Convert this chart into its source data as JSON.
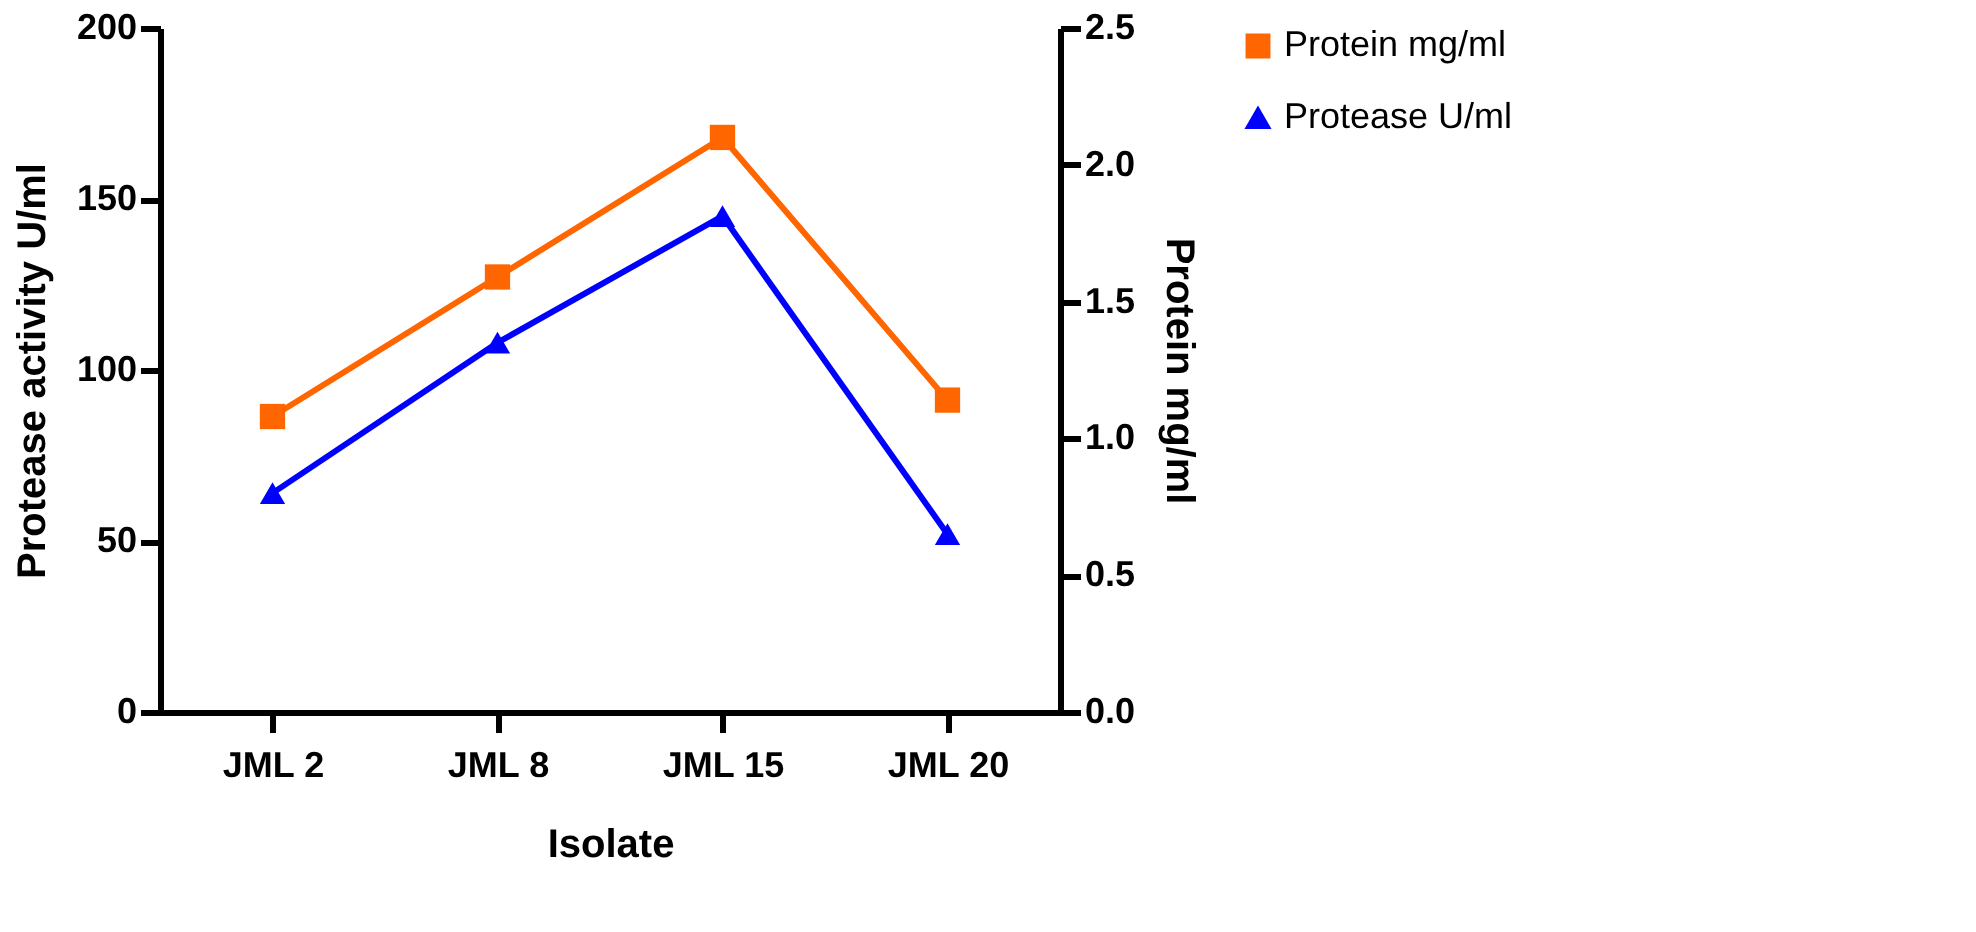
{
  "chart_data": {
    "type": "line",
    "xlabel": "Isolate",
    "ylabel": "Protease activity U/ml",
    "y2label": "Protein mg/ml",
    "categories": [
      "JML 2",
      "JML 8",
      "JML 15",
      "JML 20"
    ],
    "series": [
      {
        "name": "Protein mg/ml",
        "color": "#ff6600",
        "marker": "square",
        "axis": "y2",
        "values": [
          1.08,
          1.59,
          2.1,
          1.14
        ]
      },
      {
        "name": "Protease U/ml",
        "color": "#0000ff",
        "marker": "triangle",
        "values": [
          64,
          108,
          145,
          52
        ]
      }
    ],
    "ylim": [
      0,
      200
    ],
    "yticks": [
      0,
      50,
      100,
      150,
      200
    ],
    "y2lim": [
      0,
      2.5
    ],
    "y2ticks": [
      {
        "value": 0,
        "label": "0.0"
      },
      0.5,
      {
        "value": 1,
        "label": "1.0"
      },
      1.5,
      {
        "value": 2,
        "label": "2.0"
      },
      2.5
    ],
    "grid": false,
    "legend": "top right",
    "line_style": "solid"
  }
}
